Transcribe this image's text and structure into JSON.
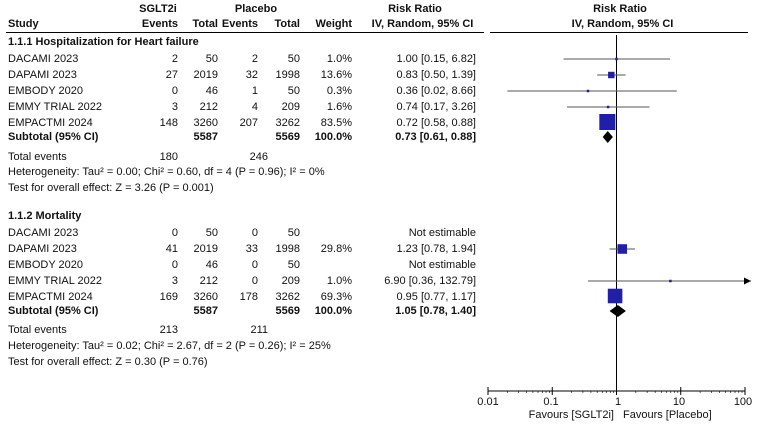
{
  "headers": {
    "group1": "SGLT2i",
    "group2": "Placebo",
    "study": "Study",
    "events1": "Events",
    "total1": "Total",
    "events2": "Events",
    "total2": "Total",
    "weight": "Weight",
    "rr_title": "Risk Ratio",
    "rr_method": "IV, Random, 95% CI",
    "plot_title": "Risk Ratio",
    "plot_method": "IV, Random, 95% CI"
  },
  "subgroups": [
    {
      "title": "1.1.1 Hospitalization for Heart failure",
      "studies": [
        {
          "name": "DACAMI 2023",
          "e1": "2",
          "t1": "50",
          "e2": "2",
          "t2": "50",
          "weight": "1.0%",
          "ci": "1.00 [0.15, 6.82]"
        },
        {
          "name": "DAPAMI 2023",
          "e1": "27",
          "t1": "2019",
          "e2": "32",
          "t2": "1998",
          "weight": "13.6%",
          "ci": "0.83 [0.50, 1.39]"
        },
        {
          "name": "EMBODY 2020",
          "e1": "0",
          "t1": "46",
          "e2": "1",
          "t2": "50",
          "weight": "0.3%",
          "ci": "0.36 [0.02, 8.66]"
        },
        {
          "name": "EMMY TRIAL 2022",
          "e1": "3",
          "t1": "212",
          "e2": "4",
          "t2": "209",
          "weight": "1.6%",
          "ci": "0.74 [0.17, 3.26]"
        },
        {
          "name": "EMPACTMI 2024",
          "e1": "148",
          "t1": "3260",
          "e2": "207",
          "t2": "3262",
          "weight": "83.5%",
          "ci": "0.72 [0.58, 0.88]"
        }
      ],
      "subtotal": {
        "label": "Subtotal (95% CI)",
        "t1": "5587",
        "t2": "5569",
        "weight": "100.0%",
        "ci": "0.73 [0.61, 0.88]"
      },
      "total_events": {
        "label": "Total events",
        "e1": "180",
        "e2": "246"
      },
      "heterogeneity": "Heterogeneity: Tau² = 0.00; Chi² = 0.60, df = 4 (P = 0.96); I² = 0%",
      "overall_effect": "Test for overall effect: Z = 3.26 (P = 0.001)"
    },
    {
      "title": "1.1.2 Mortality",
      "studies": [
        {
          "name": "DACAMI 2023",
          "e1": "0",
          "t1": "50",
          "e2": "0",
          "t2": "50",
          "weight": "",
          "ci": "Not estimable"
        },
        {
          "name": "DAPAMI 2023",
          "e1": "41",
          "t1": "2019",
          "e2": "33",
          "t2": "1998",
          "weight": "29.8%",
          "ci": "1.23 [0.78, 1.94]"
        },
        {
          "name": "EMBODY 2020",
          "e1": "0",
          "t1": "46",
          "e2": "0",
          "t2": "50",
          "weight": "",
          "ci": "Not estimable"
        },
        {
          "name": "EMMY TRIAL 2022",
          "e1": "3",
          "t1": "212",
          "e2": "0",
          "t2": "209",
          "weight": "1.0%",
          "ci": "6.90 [0.36, 132.79]"
        },
        {
          "name": "EMPACTMI 2024",
          "e1": "169",
          "t1": "3260",
          "e2": "178",
          "t2": "3262",
          "weight": "69.3%",
          "ci": "0.95 [0.77, 1.17]"
        }
      ],
      "subtotal": {
        "label": "Subtotal (95% CI)",
        "t1": "5587",
        "t2": "5569",
        "weight": "100.0%",
        "ci": "1.05 [0.78, 1.40]"
      },
      "total_events": {
        "label": "Total events",
        "e1": "213",
        "e2": "211"
      },
      "heterogeneity": "Heterogeneity: Tau² = 0.02; Chi² = 2.67, df = 2 (P = 0.26); I² = 25%",
      "overall_effect": "Test for overall effect: Z = 0.30 (P = 0.76)"
    }
  ],
  "axis": {
    "ticks": [
      "0.01",
      "0.1",
      "1",
      "10",
      "100"
    ],
    "favours_left": "Favours [SGLT2i]",
    "favours_right": "Favours [Placebo]"
  },
  "colors": {
    "study_marker": "#1f1fa8",
    "line": "#555555",
    "diamond": "#000000"
  },
  "chart_data": {
    "type": "forest",
    "scale": "log",
    "xlim": [
      0.01,
      100
    ],
    "reference_line": 1,
    "x_ticks": [
      0.01,
      0.1,
      1,
      10,
      100
    ],
    "groups": [
      {
        "name": "1.1.1 Hospitalization for Heart failure",
        "studies": [
          {
            "name": "DACAMI 2023",
            "rr": 1.0,
            "lo": 0.15,
            "hi": 6.82,
            "weight": 1.0
          },
          {
            "name": "DAPAMI 2023",
            "rr": 0.83,
            "lo": 0.5,
            "hi": 1.39,
            "weight": 13.6
          },
          {
            "name": "EMBODY 2020",
            "rr": 0.36,
            "lo": 0.02,
            "hi": 8.66,
            "weight": 0.3
          },
          {
            "name": "EMMY TRIAL 2022",
            "rr": 0.74,
            "lo": 0.17,
            "hi": 3.26,
            "weight": 1.6
          },
          {
            "name": "EMPACTMI 2024",
            "rr": 0.72,
            "lo": 0.58,
            "hi": 0.88,
            "weight": 83.5
          }
        ],
        "pooled": {
          "rr": 0.73,
          "lo": 0.61,
          "hi": 0.88
        }
      },
      {
        "name": "1.1.2 Mortality",
        "studies": [
          {
            "name": "DACAMI 2023",
            "rr": null,
            "lo": null,
            "hi": null,
            "weight": null
          },
          {
            "name": "DAPAMI 2023",
            "rr": 1.23,
            "lo": 0.78,
            "hi": 1.94,
            "weight": 29.8
          },
          {
            "name": "EMBODY 2020",
            "rr": null,
            "lo": null,
            "hi": null,
            "weight": null
          },
          {
            "name": "EMMY TRIAL 2022",
            "rr": 6.9,
            "lo": 0.36,
            "hi": 132.79,
            "weight": 1.0
          },
          {
            "name": "EMPACTMI 2024",
            "rr": 0.95,
            "lo": 0.77,
            "hi": 1.17,
            "weight": 69.3
          }
        ],
        "pooled": {
          "rr": 1.05,
          "lo": 0.78,
          "hi": 1.4
        }
      }
    ]
  }
}
